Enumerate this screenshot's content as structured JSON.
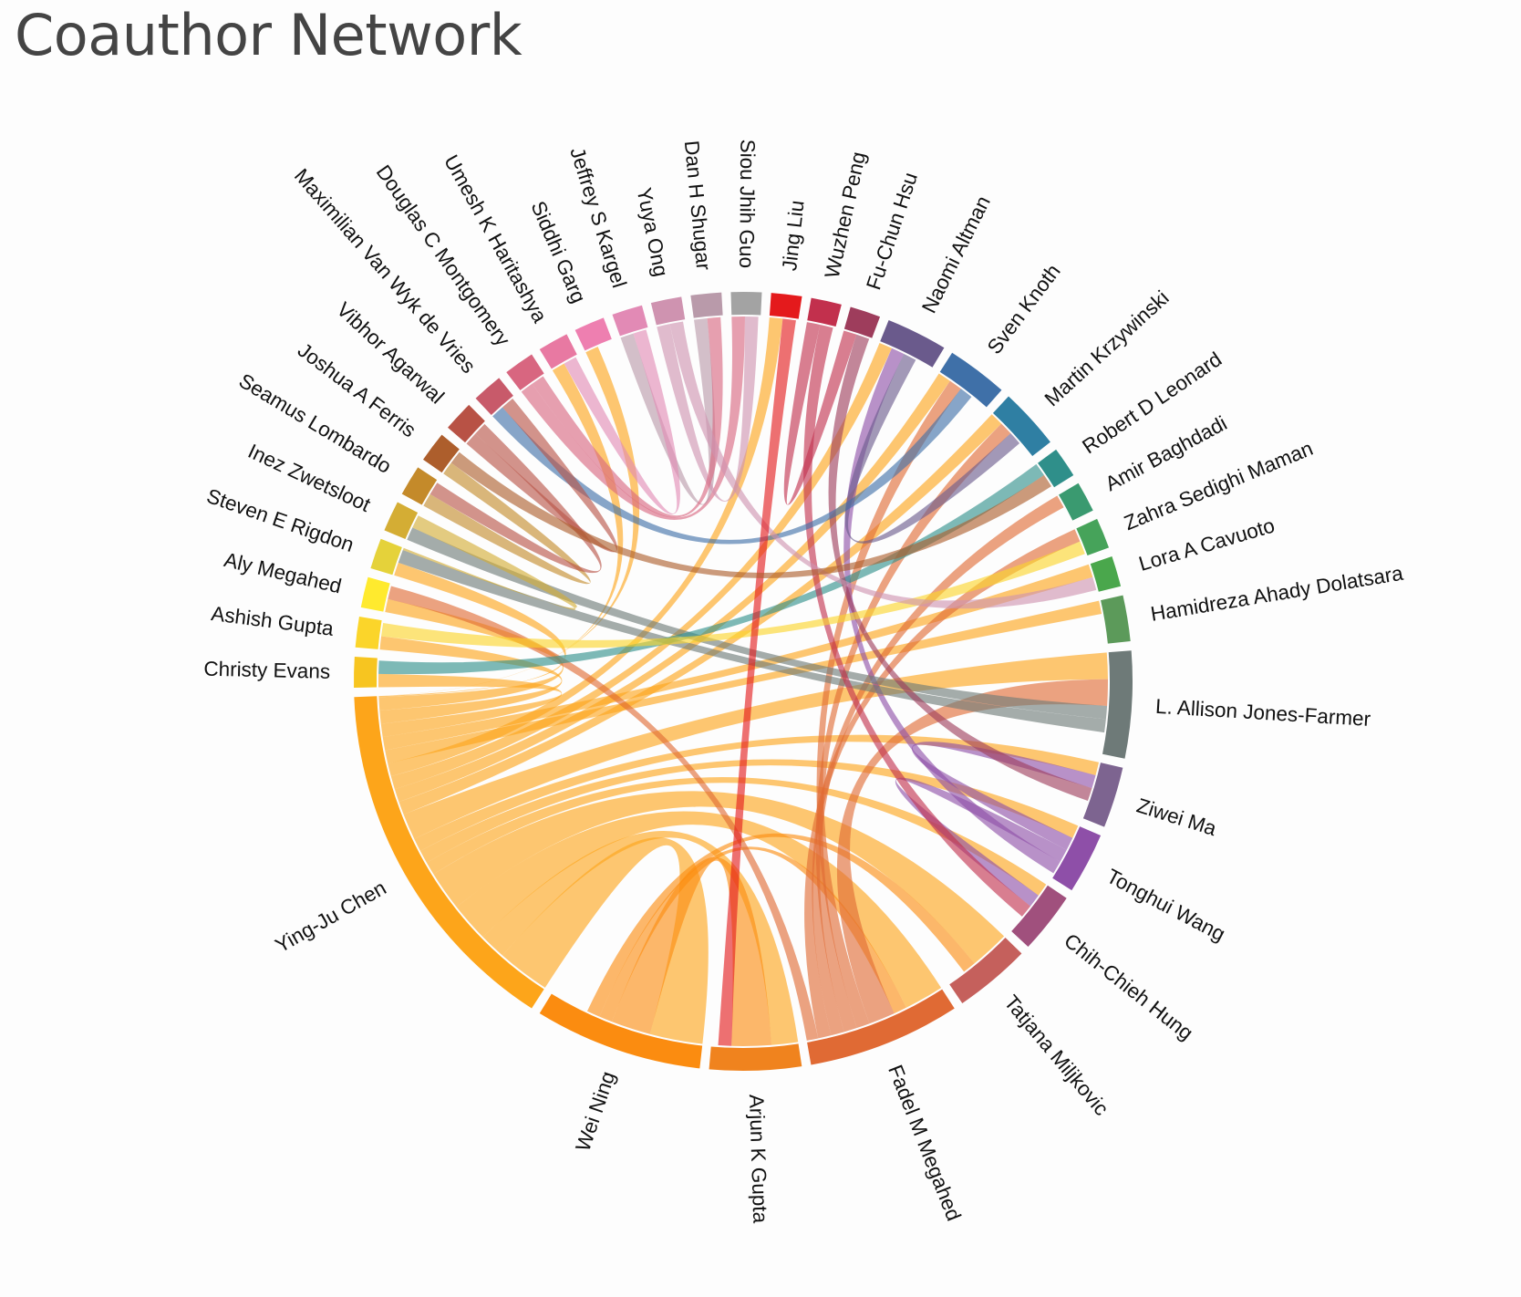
{
  "title": "Coauthor Network",
  "chart_data": {
    "type": "chord",
    "nodes": [
      {
        "id": "jing-liu",
        "name": "Jing Liu",
        "color": "#e41a1c",
        "weight": 2
      },
      {
        "id": "wuzhen-peng",
        "name": "Wuzhen Peng",
        "color": "#c2304d",
        "weight": 2
      },
      {
        "id": "fu-chun-hsu",
        "name": "Fu-Chun Hsu",
        "color": "#9e3d5c",
        "weight": 2
      },
      {
        "id": "naomi-altman",
        "name": "Naomi Altman",
        "color": "#6a5a8c",
        "weight": 4
      },
      {
        "id": "sven-knoth",
        "name": "Sven Knoth",
        "color": "#3f70a8",
        "weight": 4
      },
      {
        "id": "martin-krzywinski",
        "name": "Martin Krzywinski",
        "color": "#2f7fa3",
        "weight": 4
      },
      {
        "id": "robert-d-leonard",
        "name": "Robert D Leonard",
        "color": "#2f8f8a",
        "weight": 2
      },
      {
        "id": "amir-baghdadi",
        "name": "Amir Baghdadi",
        "color": "#3a9a70",
        "weight": 2
      },
      {
        "id": "zahra-sedighi-maman",
        "name": "Zahra Sedighi Maman",
        "color": "#46a35a",
        "weight": 2
      },
      {
        "id": "lora-a-cavuoto",
        "name": "Lora A Cavuoto",
        "color": "#4aa74c",
        "weight": 2
      },
      {
        "id": "hamidreza-ahady-dolatsara",
        "name": "Hamidreza Ahady Dolatsara",
        "color": "#5c9a5a",
        "weight": 3
      },
      {
        "id": "l-allison-jones-farmer",
        "name": "L. Allison Jones-Farmer",
        "color": "#6e7a78",
        "weight": 7
      },
      {
        "id": "ziwei-ma",
        "name": "Ziwei Ma",
        "color": "#7d6490",
        "weight": 4
      },
      {
        "id": "tonghui-wang",
        "name": "Tonghui Wang",
        "color": "#8e4fa8",
        "weight": 4
      },
      {
        "id": "chih-chieh-hung",
        "name": "Chih-Chieh Hung",
        "color": "#a0507d",
        "weight": 4
      },
      {
        "id": "tatjana-miljkovic",
        "name": "Tatjana Miljkovic",
        "color": "#c5605c",
        "weight": 5
      },
      {
        "id": "fadel-m-megahed",
        "name": "Fadel M Megahed",
        "color": "#e06a34",
        "weight": 10
      },
      {
        "id": "arjun-k-gupta",
        "name": "Arjun K Gupta",
        "color": "#f0831e",
        "weight": 6
      },
      {
        "id": "wei-ning",
        "name": "Wei Ning",
        "color": "#fb8c10",
        "weight": 11
      },
      {
        "id": "ying-ju-chen",
        "name": "Ying-Ju Chen",
        "color": "#fda51a",
        "weight": 24
      },
      {
        "id": "christy-evans",
        "name": "Christy Evans",
        "color": "#f7c520",
        "weight": 2
      },
      {
        "id": "ashish-gupta",
        "name": "Ashish Gupta",
        "color": "#fbd52a",
        "weight": 2
      },
      {
        "id": "aly-megahed",
        "name": "Aly Megahed",
        "color": "#ffea2e",
        "weight": 2
      },
      {
        "id": "steven-e-rigdon",
        "name": "Steven E Rigdon",
        "color": "#e5d23a",
        "weight": 2
      },
      {
        "id": "inez-zwetsloot",
        "name": "Inez Zwetsloot",
        "color": "#d4ad34",
        "weight": 2
      },
      {
        "id": "seamus-lombardo",
        "name": "Seamus Lombardo",
        "color": "#c48a2a",
        "weight": 2
      },
      {
        "id": "joshua-a-ferris",
        "name": "Joshua A Ferris",
        "color": "#ad5e2c",
        "weight": 2
      },
      {
        "id": "vibhor-agarwal",
        "name": "Vibhor Agarwal",
        "color": "#b85245",
        "weight": 2
      },
      {
        "id": "maximilian-van-wyk-de-vries",
        "name": "Maximilian Van Wyk de Vries",
        "color": "#c85a6a",
        "weight": 2
      },
      {
        "id": "douglas-c-montgomery",
        "name": "Douglas C Montgomery",
        "color": "#d86680",
        "weight": 2
      },
      {
        "id": "umesh-k-haritashya",
        "name": "Umesh K Haritashya",
        "color": "#e879a2",
        "weight": 2
      },
      {
        "id": "siddhi-garg",
        "name": "Siddhi Garg",
        "color": "#ee7fb0",
        "weight": 2
      },
      {
        "id": "jeffrey-s-kargel",
        "name": "Jeffrey S Kargel",
        "color": "#e28ab5",
        "weight": 2
      },
      {
        "id": "yuya-ong",
        "name": "Yuya Ong",
        "color": "#cf93b0",
        "weight": 2
      },
      {
        "id": "dan-h-shugar",
        "name": "Dan H Shugar",
        "color": "#b99aaa",
        "weight": 2
      },
      {
        "id": "siou-jhih-guo",
        "name": "Siou Jhih Guo",
        "color": "#a3a3a3",
        "weight": 2
      }
    ],
    "links": [
      {
        "source": "ying-ju-chen",
        "target": "wei-ning",
        "value": 4
      },
      {
        "source": "ying-ju-chen",
        "target": "arjun-k-gupta",
        "value": 2
      },
      {
        "source": "ying-ju-chen",
        "target": "fadel-m-megahed",
        "value": 3
      },
      {
        "source": "ying-ju-chen",
        "target": "tatjana-miljkovic",
        "value": 3
      },
      {
        "source": "ying-ju-chen",
        "target": "chih-chieh-hung",
        "value": 1
      },
      {
        "source": "ying-ju-chen",
        "target": "tonghui-wang",
        "value": 1
      },
      {
        "source": "ying-ju-chen",
        "target": "ziwei-ma",
        "value": 1
      },
      {
        "source": "ying-ju-chen",
        "target": "l-allison-jones-farmer",
        "value": 2
      },
      {
        "source": "ying-ju-chen",
        "target": "martin-krzywinski",
        "value": 1
      },
      {
        "source": "ying-ju-chen",
        "target": "sven-knoth",
        "value": 1
      },
      {
        "source": "ying-ju-chen",
        "target": "naomi-altman",
        "value": 1
      },
      {
        "source": "ying-ju-chen",
        "target": "jing-liu",
        "value": 1
      },
      {
        "source": "ying-ju-chen",
        "target": "hamidreza-ahady-dolatsara",
        "value": 1
      },
      {
        "source": "ying-ju-chen",
        "target": "lora-a-cavuoto",
        "value": 1
      },
      {
        "source": "ying-ju-chen",
        "target": "christy-evans",
        "value": 1
      },
      {
        "source": "ying-ju-chen",
        "target": "ashish-gupta",
        "value": 1
      },
      {
        "source": "ying-ju-chen",
        "target": "aly-megahed",
        "value": 1
      },
      {
        "source": "ying-ju-chen",
        "target": "steven-e-rigdon",
        "value": 1
      },
      {
        "source": "ying-ju-chen",
        "target": "siddhi-garg",
        "value": 1
      },
      {
        "source": "ying-ju-chen",
        "target": "umesh-k-haritashya",
        "value": 1
      },
      {
        "source": "wei-ning",
        "target": "arjun-k-gupta",
        "value": 3
      },
      {
        "source": "wei-ning",
        "target": "fadel-m-megahed",
        "value": 1
      },
      {
        "source": "wei-ning",
        "target": "tatjana-miljkovic",
        "value": 1
      },
      {
        "source": "fadel-m-megahed",
        "target": "l-allison-jones-farmer",
        "value": 2
      },
      {
        "source": "fadel-m-megahed",
        "target": "sven-knoth",
        "value": 1
      },
      {
        "source": "fadel-m-megahed",
        "target": "martin-krzywinski",
        "value": 1
      },
      {
        "source": "fadel-m-megahed",
        "target": "amir-baghdadi",
        "value": 1
      },
      {
        "source": "fadel-m-megahed",
        "target": "zahra-sedighi-maman",
        "value": 1
      },
      {
        "source": "fadel-m-megahed",
        "target": "aly-megahed",
        "value": 1
      },
      {
        "source": "tonghui-wang",
        "target": "ziwei-ma",
        "value": 1
      },
      {
        "source": "tonghui-wang",
        "target": "chih-chieh-hung",
        "value": 1
      },
      {
        "source": "tonghui-wang",
        "target": "naomi-altman",
        "value": 1
      },
      {
        "source": "l-allison-jones-farmer",
        "target": "inez-zwetsloot",
        "value": 1
      },
      {
        "source": "l-allison-jones-farmer",
        "target": "steven-e-rigdon",
        "value": 1
      },
      {
        "source": "naomi-altman",
        "target": "martin-krzywinski",
        "value": 1
      },
      {
        "source": "robert-d-leonard",
        "target": "christy-evans",
        "value": 1
      },
      {
        "source": "wuzhen-peng",
        "target": "fu-chun-hsu",
        "value": 1
      },
      {
        "source": "wuzhen-peng",
        "target": "chih-chieh-hung",
        "value": 1
      },
      {
        "source": "fu-chun-hsu",
        "target": "ziwei-ma",
        "value": 1
      },
      {
        "source": "sven-knoth",
        "target": "maximilian-van-wyk-de-vries",
        "value": 1
      },
      {
        "source": "douglas-c-montgomery",
        "target": "siou-jhih-guo",
        "value": 1
      },
      {
        "source": "dan-h-shugar",
        "target": "jeffrey-s-kargel",
        "value": 1
      },
      {
        "source": "yuya-ong",
        "target": "siou-jhih-guo",
        "value": 1
      },
      {
        "source": "seamus-lombardo",
        "target": "joshua-a-ferris",
        "value": 1
      },
      {
        "source": "vibhor-agarwal",
        "target": "maximilian-van-wyk-de-vries",
        "value": 1
      },
      {
        "source": "douglas-c-montgomery",
        "target": "dan-h-shugar",
        "value": 1
      },
      {
        "source": "ashish-gupta",
        "target": "zahra-sedighi-maman",
        "value": 1
      },
      {
        "source": "inez-zwetsloot",
        "target": "steven-e-rigdon",
        "value": 1
      },
      {
        "source": "jeffrey-s-kargel",
        "target": "umesh-k-haritashya",
        "value": 1
      },
      {
        "source": "yuya-ong",
        "target": "lora-a-cavuoto",
        "value": 1
      },
      {
        "source": "jing-liu",
        "target": "arjun-k-gupta",
        "value": 1
      },
      {
        "source": "vibhor-agarwal",
        "target": "seamus-lombardo",
        "value": 1
      },
      {
        "source": "joshua-a-ferris",
        "target": "robert-d-leonard",
        "value": 1
      }
    ]
  }
}
